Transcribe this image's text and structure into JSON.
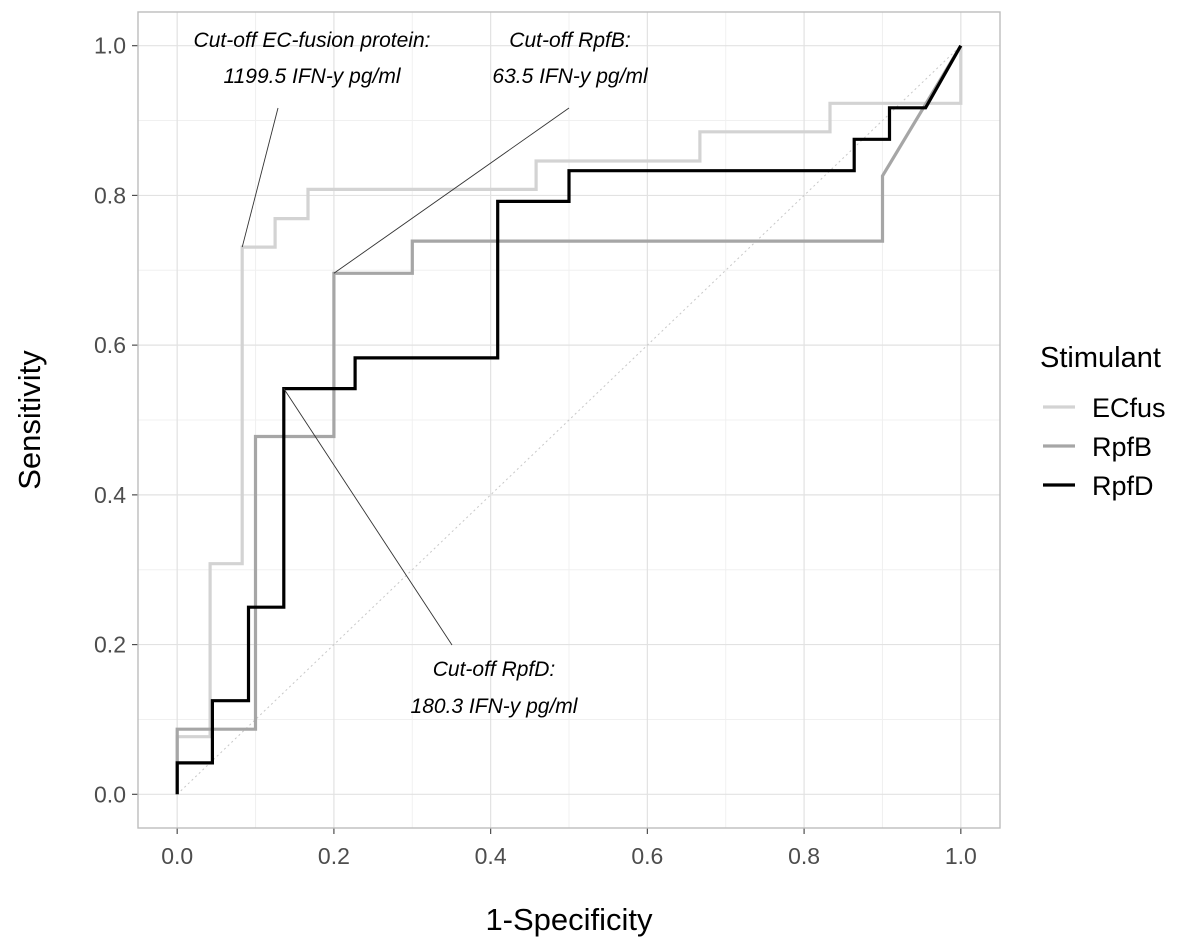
{
  "chart_data": {
    "type": "line",
    "title": "",
    "xlabel": "1-Specificity",
    "ylabel": "Sensitivity",
    "xlim": [
      -0.05,
      1.05
    ],
    "ylim": [
      -0.045,
      1.045
    ],
    "xticks": [
      0.0,
      0.2,
      0.4,
      0.6,
      0.8,
      1.0
    ],
    "yticks": [
      0.0,
      0.2,
      0.4,
      0.6,
      0.8,
      1.0
    ],
    "xtick_labels": [
      "0.0",
      "0.2",
      "0.4",
      "0.6",
      "0.8",
      "1.0"
    ],
    "ytick_labels": [
      "0.0",
      "0.2",
      "0.4",
      "0.6",
      "0.8",
      "1.0"
    ],
    "grid": true,
    "legend": {
      "title": "Stimulant",
      "placement": "right"
    },
    "reference_line": {
      "type": "diagonal",
      "points": [
        [
          0,
          0
        ],
        [
          1,
          1
        ]
      ],
      "style": "dotted"
    },
    "series": [
      {
        "name": "ECfus",
        "color": "#d3d3d3",
        "points": [
          [
            0,
            0
          ],
          [
            0,
            0.077
          ],
          [
            0.042,
            0.077
          ],
          [
            0.042,
            0.308
          ],
          [
            0.083,
            0.308
          ],
          [
            0.083,
            0.731
          ],
          [
            0.125,
            0.731
          ],
          [
            0.125,
            0.769
          ],
          [
            0.167,
            0.769
          ],
          [
            0.167,
            0.808
          ],
          [
            0.458,
            0.808
          ],
          [
            0.458,
            0.846
          ],
          [
            0.667,
            0.846
          ],
          [
            0.667,
            0.885
          ],
          [
            0.833,
            0.885
          ],
          [
            0.833,
            0.923
          ],
          [
            1.0,
            0.923
          ],
          [
            1.0,
            1.0
          ]
        ]
      },
      {
        "name": "RpfB",
        "color": "#a6a6a6",
        "points": [
          [
            0,
            0
          ],
          [
            0,
            0.087
          ],
          [
            0.1,
            0.087
          ],
          [
            0.1,
            0.478
          ],
          [
            0.2,
            0.478
          ],
          [
            0.2,
            0.696
          ],
          [
            0.3,
            0.696
          ],
          [
            0.3,
            0.739
          ],
          [
            0.9,
            0.739
          ],
          [
            0.9,
            0.826
          ],
          [
            1.0,
            1.0
          ]
        ]
      },
      {
        "name": "RpfD",
        "color": "#000000",
        "points": [
          [
            0,
            0
          ],
          [
            0,
            0.042
          ],
          [
            0.045,
            0.042
          ],
          [
            0.045,
            0.125
          ],
          [
            0.091,
            0.125
          ],
          [
            0.091,
            0.25
          ],
          [
            0.136,
            0.25
          ],
          [
            0.136,
            0.542
          ],
          [
            0.227,
            0.542
          ],
          [
            0.227,
            0.583
          ],
          [
            0.409,
            0.583
          ],
          [
            0.409,
            0.792
          ],
          [
            0.5,
            0.792
          ],
          [
            0.5,
            0.833
          ],
          [
            0.864,
            0.833
          ],
          [
            0.864,
            0.875
          ],
          [
            0.909,
            0.875
          ],
          [
            0.909,
            0.917
          ],
          [
            0.955,
            0.917
          ],
          [
            1.0,
            1.0
          ]
        ]
      }
    ],
    "annotations": [
      {
        "line1": "Cut-off EC-fusion protein:",
        "line2": "1199.5 IFN-y pg/ml",
        "point": [
          0.083,
          0.731
        ]
      },
      {
        "line1": "Cut-off RpfB:",
        "line2": "63.5 IFN-y pg/ml",
        "point": [
          0.2,
          0.696
        ]
      },
      {
        "line1": "Cut-off RpfD:",
        "line2": "180.3 IFN-y pg/ml",
        "point": [
          0.136,
          0.542
        ]
      }
    ]
  }
}
